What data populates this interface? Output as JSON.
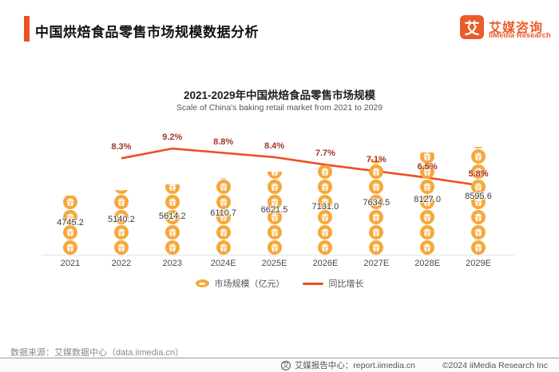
{
  "header": {
    "title": "中国烘焙食品零售市场规模数据分析",
    "logo": {
      "mark": "艾",
      "name_cn": "艾媒咨询",
      "name_en": "iiMedia Research"
    }
  },
  "chart_data": {
    "type": "combo",
    "title": "2021-2029年中国烘焙食品零售市场规模",
    "subtitle": "Scale of China's baking retail market from 2021 to 2029",
    "categories": [
      "2021",
      "2022",
      "2023",
      "2024E",
      "2025E",
      "2026E",
      "2027E",
      "2028E",
      "2029E"
    ],
    "series": [
      {
        "name": "市场规模（亿元）",
        "type": "pictorial-bar",
        "icon": "cupcake-icon",
        "values": [
          4745.2,
          5140.2,
          5614.2,
          6110.7,
          6621.5,
          7131.0,
          7634.5,
          8127.0,
          8595.6
        ],
        "labels": [
          "4745.2",
          "5140.2",
          "5614.2",
          "6110.7",
          "6621.5",
          "7131.0",
          "7634.5",
          "8127.0",
          "8595.6"
        ]
      },
      {
        "name": "同比增长",
        "type": "line",
        "values": [
          null,
          8.3,
          9.2,
          8.8,
          8.4,
          7.7,
          7.1,
          6.5,
          5.8
        ],
        "labels": [
          "",
          "8.3%",
          "9.2%",
          "8.8%",
          "8.4%",
          "7.7%",
          "7.1%",
          "6.5%",
          "5.8%"
        ]
      }
    ],
    "legend": [
      "市场规模（亿元）",
      "同比增长"
    ],
    "legend_position": "bottom",
    "grid": false,
    "axes_shown": "x-only"
  },
  "colors": {
    "accent_red_orange": "#ee4f23",
    "icon_orange": "#f5a83b",
    "pct_text_red": "#a5342a",
    "logo_orange": "#e95d2b"
  },
  "footer": {
    "source": "数据来源：艾媒数据中心（data.iimedia.cn）",
    "report_center_icon": "艾",
    "report_center": "艾媒报告中心：report.iimedia.cn",
    "copyright": "©2024 iiMedia Research Inc"
  }
}
